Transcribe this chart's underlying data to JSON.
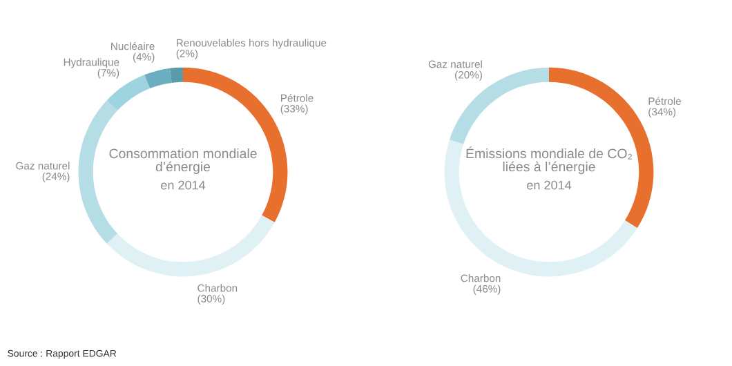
{
  "chart_data": [
    {
      "type": "donut",
      "title": "Consommation mondiale d’énergie",
      "subtitle": "en 2014",
      "categories": [
        "Pétrole",
        "Charbon",
        "Gaz naturel",
        "Hydraulique",
        "Nucléaire",
        "Renouvelables hors hydraulique"
      ],
      "values": [
        33,
        30,
        24,
        7,
        4,
        2
      ],
      "value_labels": [
        "(33%)",
        "(30%)",
        "(24%)",
        "(7%)",
        "(4%)",
        "(2%)"
      ],
      "colors": [
        "#e8702f",
        "#dff1f5",
        "#b5dde6",
        "#9ed3e0",
        "#6aaebf",
        "#5b9aaa"
      ],
      "annotations": [
        "Source : Rapport EDGAR"
      ]
    },
    {
      "type": "donut",
      "title": "Émissions mondiale de CO₂ liées à l’énergie",
      "subtitle": "en 2014",
      "categories": [
        "Pétrole",
        "Charbon",
        "Gaz naturel"
      ],
      "values": [
        34,
        46,
        20
      ],
      "value_labels": [
        "(34%)",
        "(46%)",
        "(20%)"
      ],
      "colors": [
        "#e8702f",
        "#dff1f5",
        "#b5dde6"
      ]
    }
  ]
}
